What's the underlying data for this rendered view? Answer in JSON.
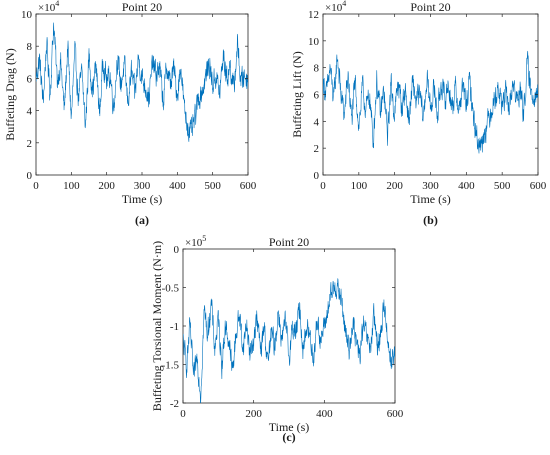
{
  "chart_data": [
    {
      "id": "a",
      "type": "line",
      "title": "Point 20",
      "panel_label": "(a)",
      "xlabel": "Time (s)",
      "ylabel": "Buffeting Drag (N)",
      "xlim": [
        0,
        600
      ],
      "ylim": [
        0,
        100000
      ],
      "x_ticks": [
        0,
        100,
        200,
        300,
        400,
        500,
        600
      ],
      "x_tick_labels": [
        "0",
        "100",
        "200",
        "300",
        "400",
        "500",
        "600"
      ],
      "y_ticks": [
        0,
        20000,
        40000,
        60000,
        80000,
        100000
      ],
      "y_tick_labels": [
        "0",
        "2",
        "4",
        "6",
        "8",
        "10"
      ],
      "multiplier": {
        "base": "×10",
        "exponent": "4"
      },
      "series": [
        {
          "color": "#0072BD",
          "x": [
            0,
            10,
            20,
            30,
            40,
            50,
            60,
            70,
            80,
            90,
            100,
            110,
            120,
            130,
            140,
            150,
            160,
            170,
            180,
            190,
            200,
            210,
            220,
            230,
            240,
            250,
            260,
            270,
            280,
            290,
            300,
            310,
            320,
            330,
            340,
            350,
            360,
            370,
            380,
            390,
            400,
            410,
            420,
            430,
            440,
            450,
            460,
            470,
            480,
            490,
            500,
            510,
            520,
            530,
            540,
            550,
            560,
            570,
            580,
            590,
            600
          ],
          "y": [
            60000,
            72000,
            45000,
            82000,
            50000,
            95000,
            58000,
            70000,
            40000,
            80000,
            35000,
            76000,
            48000,
            64000,
            30000,
            74000,
            52000,
            68000,
            38000,
            72000,
            58000,
            62000,
            42000,
            73000,
            56000,
            68000,
            45000,
            64000,
            50000,
            73000,
            60000,
            55000,
            48000,
            70000,
            62000,
            67000,
            45000,
            68000,
            56000,
            66000,
            50000,
            68000,
            40000,
            30000,
            26000,
            35000,
            48000,
            52000,
            60000,
            70000,
            56000,
            62000,
            50000,
            75000,
            60000,
            68000,
            52000,
            82000,
            58000,
            62000,
            60000
          ],
          "noise": 9000
        }
      ]
    },
    {
      "id": "b",
      "type": "line",
      "title": "Point 20",
      "panel_label": "(b)",
      "xlabel": "Time (s)",
      "ylabel": "Buffeting Lift (N)",
      "xlim": [
        0,
        600
      ],
      "ylim": [
        0,
        120000
      ],
      "x_ticks": [
        0,
        100,
        200,
        300,
        400,
        500,
        600
      ],
      "x_tick_labels": [
        "0",
        "100",
        "200",
        "300",
        "400",
        "500",
        "600"
      ],
      "y_ticks": [
        0,
        20000,
        40000,
        60000,
        80000,
        100000,
        120000
      ],
      "y_tick_labels": [
        "0",
        "2",
        "4",
        "6",
        "8",
        "10",
        "12"
      ],
      "multiplier": {
        "base": "×10",
        "exponent": "4"
      },
      "series": [
        {
          "color": "#0072BD",
          "x": [
            0,
            10,
            20,
            30,
            40,
            50,
            60,
            70,
            80,
            90,
            100,
            110,
            120,
            130,
            140,
            150,
            160,
            170,
            180,
            190,
            200,
            210,
            220,
            230,
            240,
            250,
            260,
            270,
            280,
            290,
            300,
            310,
            320,
            330,
            340,
            350,
            360,
            370,
            380,
            390,
            400,
            410,
            420,
            430,
            440,
            450,
            460,
            470,
            480,
            490,
            500,
            510,
            520,
            530,
            540,
            550,
            560,
            570,
            580,
            590,
            600
          ],
          "y": [
            70000,
            60000,
            80000,
            55000,
            90000,
            60000,
            45000,
            75000,
            40000,
            70000,
            35000,
            65000,
            48000,
            60000,
            25000,
            70000,
            45000,
            62000,
            30000,
            68000,
            45000,
            70000,
            50000,
            64000,
            40000,
            68000,
            55000,
            60000,
            42000,
            72000,
            50000,
            65000,
            45000,
            70000,
            55000,
            68000,
            50000,
            64000,
            48000,
            66000,
            52000,
            70000,
            42000,
            28000,
            22000,
            32000,
            40000,
            50000,
            58000,
            64000,
            52000,
            60000,
            48000,
            70000,
            55000,
            64000,
            45000,
            85000,
            60000,
            62000,
            62000
          ],
          "noise": 11000
        }
      ]
    },
    {
      "id": "c",
      "type": "line",
      "title": "Point 20",
      "panel_label": "(c)",
      "xlabel": "Time (s)",
      "ylabel": "Buffeting Torsional Moment (N·m)",
      "xlim": [
        0,
        600
      ],
      "ylim": [
        -200000,
        0
      ],
      "x_ticks": [
        0,
        200,
        400,
        600
      ],
      "x_tick_labels": [
        "0",
        "200",
        "400",
        "600"
      ],
      "y_ticks": [
        -200000,
        -150000,
        -100000,
        -50000,
        0
      ],
      "y_tick_labels": [
        "-2",
        "-1.5",
        "-1",
        "-0.5",
        "0"
      ],
      "multiplier": {
        "base": "×10",
        "exponent": "5"
      },
      "series": [
        {
          "color": "#0072BD",
          "x": [
            0,
            10,
            20,
            30,
            40,
            50,
            60,
            70,
            80,
            90,
            100,
            110,
            120,
            130,
            140,
            150,
            160,
            170,
            180,
            190,
            200,
            210,
            220,
            230,
            240,
            250,
            260,
            270,
            280,
            290,
            300,
            310,
            320,
            330,
            340,
            350,
            360,
            370,
            380,
            390,
            400,
            410,
            420,
            430,
            440,
            450,
            460,
            470,
            480,
            490,
            500,
            510,
            520,
            530,
            540,
            550,
            560,
            570,
            580,
            590,
            600
          ],
          "y": [
            -120000,
            -150000,
            -100000,
            -170000,
            -140000,
            -190000,
            -80000,
            -110000,
            -70000,
            -130000,
            -90000,
            -150000,
            -100000,
            -120000,
            -160000,
            -110000,
            -85000,
            -130000,
            -95000,
            -140000,
            -115000,
            -90000,
            -135000,
            -100000,
            -150000,
            -110000,
            -125000,
            -80000,
            -120000,
            -95000,
            -140000,
            -100000,
            -110000,
            -75000,
            -130000,
            -100000,
            -115000,
            -140000,
            -90000,
            -120000,
            -100000,
            -80000,
            -60000,
            -45000,
            -55000,
            -70000,
            -110000,
            -130000,
            -95000,
            -120000,
            -140000,
            -100000,
            -115000,
            -130000,
            -90000,
            -125000,
            -110000,
            -70000,
            -120000,
            -145000,
            -135000
          ],
          "noise": 18000
        }
      ]
    }
  ]
}
